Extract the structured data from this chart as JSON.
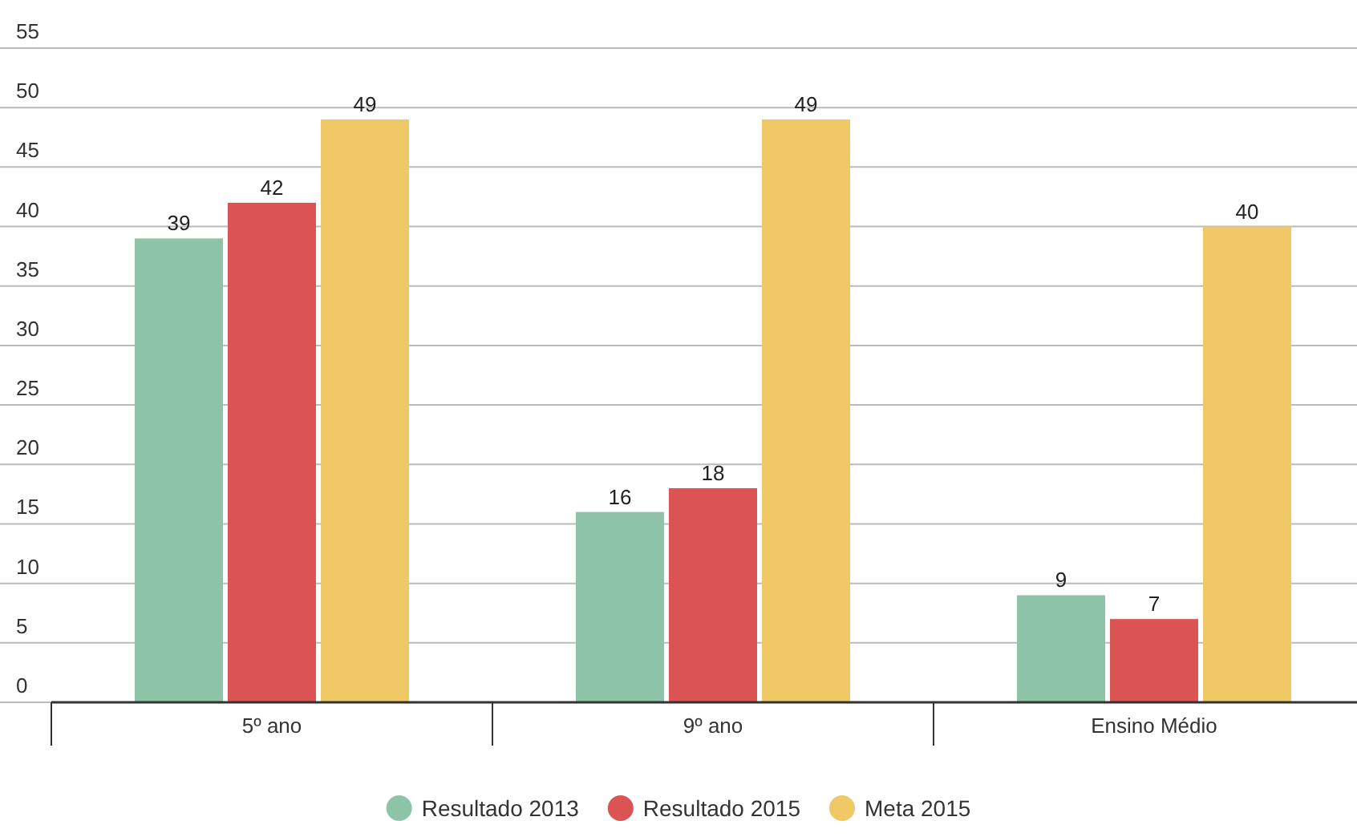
{
  "chart_data": {
    "type": "bar",
    "categories": [
      "5º ano",
      "9º ano",
      "Ensino Médio"
    ],
    "series": [
      {
        "name": "Resultado 2013",
        "color": "#8dc3a7",
        "values": [
          39,
          16,
          9
        ]
      },
      {
        "name": "Resultado 2015",
        "color": "#dc5353",
        "values": [
          42,
          18,
          7
        ]
      },
      {
        "name": "Meta 2015",
        "color": "#efc965",
        "values": [
          49,
          49,
          40
        ]
      }
    ],
    "ylim": [
      0,
      55
    ],
    "yticks": [
      0,
      5,
      10,
      15,
      20,
      25,
      30,
      35,
      40,
      45,
      50,
      55
    ],
    "grid": "y",
    "legend": "bottom",
    "data_labels": true
  }
}
